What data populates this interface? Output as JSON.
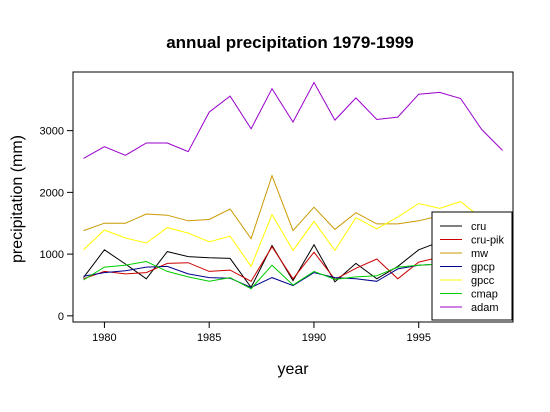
{
  "chart_data": {
    "type": "line",
    "title": "annual precipitation 1979-1999",
    "xlabel": "year",
    "ylabel": "precipitation (mm)",
    "xlim": [
      1978.5,
      1999.5
    ],
    "ylim": [
      -100,
      3950
    ],
    "x_ticks": [
      1980,
      1985,
      1990,
      1995
    ],
    "y_ticks": [
      0,
      1000,
      2000,
      3000
    ],
    "x": [
      1979,
      1980,
      1981,
      1982,
      1983,
      1984,
      1985,
      1986,
      1987,
      1988,
      1989,
      1990,
      1991,
      1992,
      1993,
      1994,
      1995,
      1996,
      1997,
      1998,
      1999
    ],
    "legend_position": "bottom-right",
    "series": [
      {
        "name": "cru",
        "color": "#000000",
        "values": [
          620,
          1070,
          840,
          600,
          1040,
          960,
          940,
          930,
          460,
          1140,
          570,
          1150,
          550,
          850,
          600,
          800,
          1070,
          1200,
          1250,
          1200,
          1150
        ]
      },
      {
        "name": "cru-pik",
        "color": "#cc0000",
        "values": [
          600,
          720,
          680,
          700,
          850,
          860,
          720,
          740,
          560,
          1120,
          600,
          1030,
          590,
          770,
          920,
          600,
          870,
          950,
          980,
          940,
          920
        ]
      },
      {
        "name": "mw",
        "color": "#cc9900",
        "values": [
          1380,
          1500,
          1500,
          1650,
          1630,
          1540,
          1560,
          1730,
          1250,
          2270,
          1380,
          1760,
          1400,
          1670,
          1490,
          1490,
          1540,
          1620,
          1600,
          1590,
          1580
        ]
      },
      {
        "name": "gpcp",
        "color": "#00008b",
        "values": [
          640,
          700,
          730,
          790,
          800,
          680,
          620,
          610,
          460,
          620,
          490,
          700,
          620,
          600,
          560,
          760,
          820,
          840,
          860,
          860,
          860
        ]
      },
      {
        "name": "gpcc",
        "color": "#ffff00",
        "values": [
          1070,
          1390,
          1260,
          1180,
          1430,
          1340,
          1200,
          1290,
          800,
          1640,
          1060,
          1530,
          1060,
          1590,
          1410,
          1600,
          1820,
          1740,
          1850,
          1580,
          1560
        ]
      },
      {
        "name": "cmap",
        "color": "#00cc00",
        "values": [
          580,
          790,
          820,
          880,
          720,
          630,
          560,
          620,
          440,
          820,
          500,
          720,
          590,
          630,
          650,
          790,
          820,
          840,
          850,
          850,
          850
        ]
      },
      {
        "name": "adam",
        "color": "#9900cc",
        "values": [
          2550,
          2740,
          2600,
          2800,
          2800,
          2660,
          3300,
          3560,
          3030,
          3680,
          3140,
          3780,
          3170,
          3530,
          3180,
          3220,
          3590,
          3620,
          3520,
          3020,
          2680
        ]
      }
    ]
  }
}
